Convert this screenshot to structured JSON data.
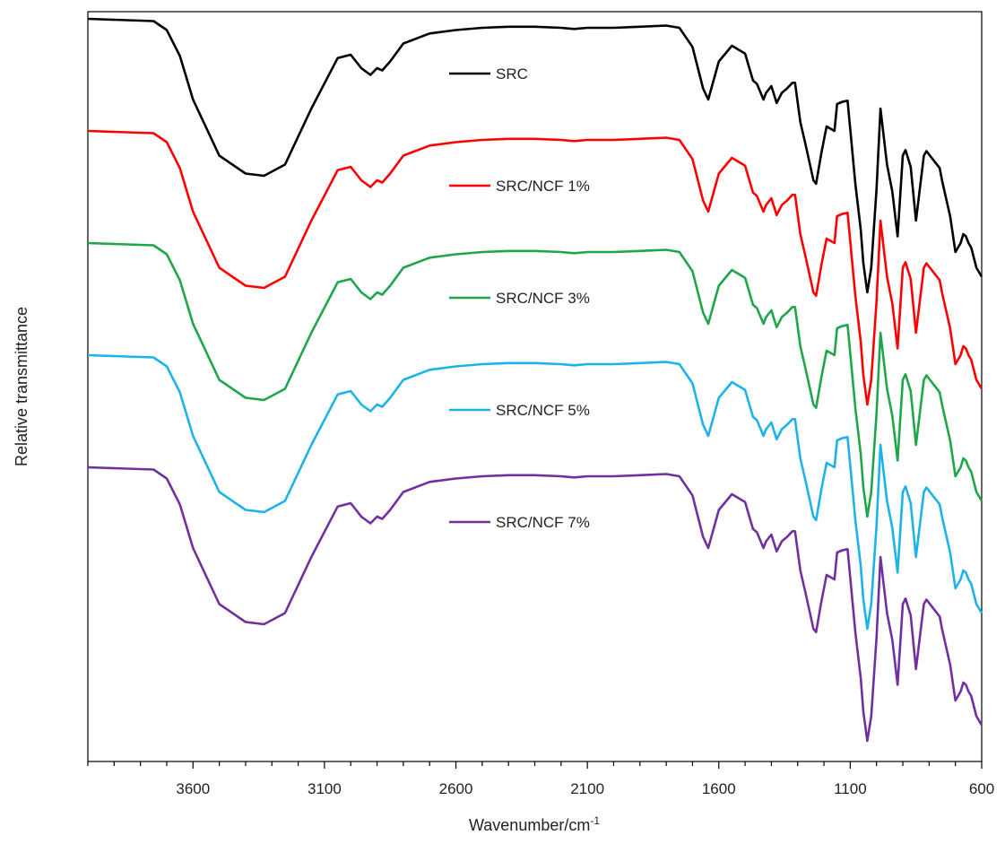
{
  "chart_data": {
    "type": "line",
    "xlabel": "Wavenumber/cm",
    "xlabel_superscript": "-1",
    "ylabel": "Relative transmittance",
    "xlim": [
      4000,
      600
    ],
    "x_reversed": true,
    "x_ticks": [
      3600,
      3100,
      2600,
      2100,
      1600,
      1100,
      600
    ],
    "x_tick_labels": [
      "3600",
      "3100",
      "2600",
      "2100",
      "1600",
      "1100",
      "600"
    ],
    "x_minor_tick_step": 100,
    "y_ticks_shown": false,
    "grid": false,
    "legend_placement": "center-inside, stacked beside each curve",
    "series": [
      {
        "name": "SRC",
        "color": "#000000"
      },
      {
        "name": "SRC/NCF 1%",
        "color": "#ff0000"
      },
      {
        "name": "SRC/NCF 3%",
        "color": "#1fa64a"
      },
      {
        "name": "SRC/NCF 5%",
        "color": "#1cb4e8"
      },
      {
        "name": "SRC/NCF 7%",
        "color": "#7030a0"
      }
    ],
    "series_offset_step": 1.0,
    "x": [
      4000,
      3750,
      3700,
      3650,
      3600,
      3500,
      3400,
      3330,
      3250,
      3150,
      3050,
      3000,
      2960,
      2925,
      2900,
      2880,
      2850,
      2800,
      2700,
      2600,
      2500,
      2400,
      2300,
      2200,
      2150,
      2100,
      2000,
      1900,
      1800,
      1750,
      1700,
      1660,
      1640,
      1600,
      1550,
      1500,
      1470,
      1455,
      1430,
      1420,
      1400,
      1380,
      1360,
      1340,
      1320,
      1310,
      1290,
      1270,
      1240,
      1230,
      1210,
      1190,
      1160,
      1150,
      1130,
      1110,
      1080,
      1060,
      1050,
      1035,
      1020,
      1000,
      985,
      960,
      940,
      920,
      900,
      890,
      870,
      850,
      820,
      810,
      780,
      760,
      750,
      720,
      700,
      680,
      670,
      660,
      650,
      640,
      620,
      600
    ],
    "base_profile": [
      0.0,
      0.02,
      0.1,
      0.33,
      0.72,
      1.22,
      1.38,
      1.4,
      1.3,
      0.8,
      0.35,
      0.32,
      0.44,
      0.5,
      0.44,
      0.46,
      0.38,
      0.22,
      0.13,
      0.1,
      0.08,
      0.07,
      0.07,
      0.08,
      0.09,
      0.08,
      0.08,
      0.07,
      0.06,
      0.08,
      0.25,
      0.62,
      0.72,
      0.38,
      0.24,
      0.31,
      0.55,
      0.58,
      0.72,
      0.66,
      0.6,
      0.75,
      0.66,
      0.62,
      0.57,
      0.57,
      0.92,
      1.12,
      1.44,
      1.47,
      1.2,
      0.96,
      1.0,
      0.76,
      0.74,
      0.73,
      1.48,
      1.88,
      2.18,
      2.44,
      2.22,
      1.52,
      0.8,
      1.3,
      1.54,
      1.94,
      1.22,
      1.17,
      1.32,
      1.8,
      1.22,
      1.18,
      1.27,
      1.33,
      1.45,
      1.76,
      2.08,
      2.0,
      1.92,
      1.94,
      2.0,
      2.04,
      2.22,
      2.3
    ]
  }
}
